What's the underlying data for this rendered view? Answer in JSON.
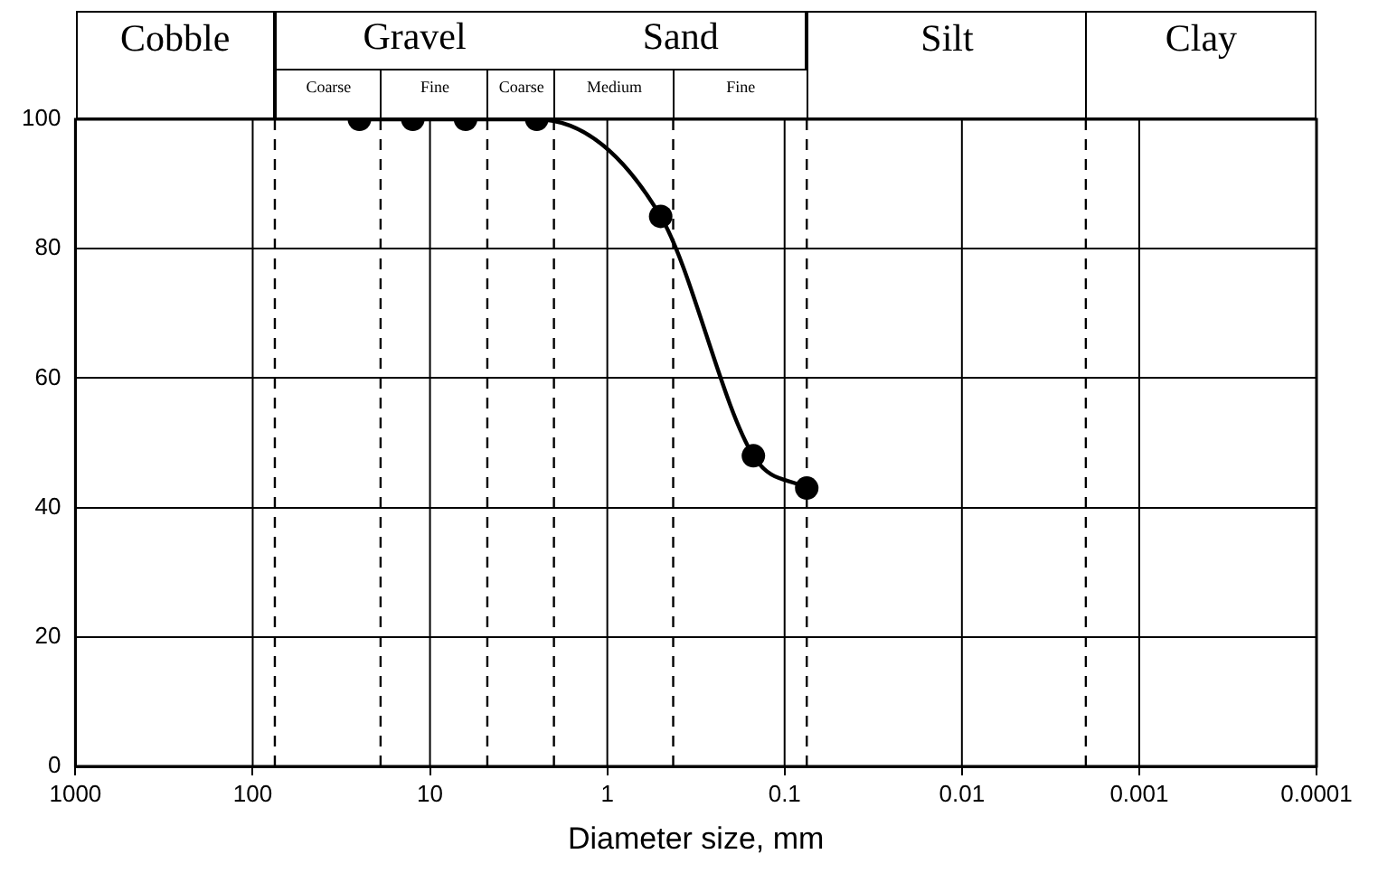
{
  "chart_data": {
    "type": "line",
    "xlabel": "Diameter size, mm",
    "log": "x",
    "x": [
      25,
      12.5,
      6.3,
      2.5,
      0.5,
      0.15,
      0.075
    ],
    "series": [
      {
        "color": "#000000",
        "values": [
          100,
          100,
          100,
          100,
          85,
          48,
          43
        ]
      }
    ],
    "xlim": [
      1000,
      0.0001
    ],
    "xticks": [
      1000,
      100,
      10,
      1,
      0.1,
      0.01,
      0.001,
      0.0001
    ],
    "ylim": [
      0,
      100
    ],
    "yticks": [
      0,
      20,
      40,
      60,
      80,
      100
    ],
    "grid": true,
    "legend": false,
    "marker": "circle",
    "line_style": "solid",
    "ref_lines": [
      {
        "axis": "x",
        "value": 75,
        "color": "#000000",
        "line_style": "dashed"
      },
      {
        "axis": "x",
        "value": 19,
        "color": "#000000",
        "line_style": "dashed"
      },
      {
        "axis": "x",
        "value": 4.75,
        "color": "#000000",
        "line_style": "dashed"
      },
      {
        "axis": "x",
        "value": 2,
        "color": "#000000",
        "line_style": "dashed"
      },
      {
        "axis": "x",
        "value": 0.425,
        "color": "#000000",
        "line_style": "dashed"
      },
      {
        "axis": "x",
        "value": 0.075,
        "color": "#000000",
        "line_style": "dashed"
      },
      {
        "axis": "x",
        "value": 0.002,
        "color": "#000000",
        "line_style": "dashed"
      }
    ],
    "annotations": [
      "Cobble",
      "Gravel",
      "Sand",
      "Silt",
      "Clay",
      "Coarse",
      "Fine",
      "Coarse",
      "Medium",
      "Fine"
    ]
  }
}
